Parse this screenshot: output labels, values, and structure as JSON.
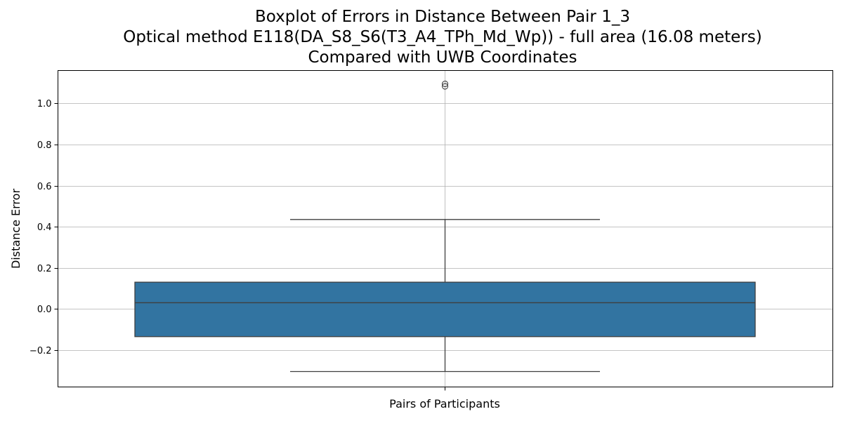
{
  "chart_data": {
    "type": "boxplot",
    "title_lines": [
      "Boxplot of Errors in Distance Between Pair 1_3",
      "Optical method E118(DA_S8_S6(T3_A4_TPh_Md_Wp)) - full area (16.08 meters)",
      "Compared with UWB Coordinates"
    ],
    "xlabel": "Pairs of Participants",
    "ylabel": "Distance Error",
    "ylim": [
      -0.38,
      1.16
    ],
    "yticks": [
      -0.2,
      0.0,
      0.2,
      0.4,
      0.6,
      0.8,
      1.0
    ],
    "ytick_labels": [
      "−0.2",
      "0.0",
      "0.2",
      "0.4",
      "0.6",
      "0.8",
      "1.0"
    ],
    "grid": true,
    "box": {
      "whisker_low": -0.305,
      "q1": -0.135,
      "median": 0.03,
      "q3": 0.13,
      "whisker_high": 0.435,
      "outliers": [
        1.083,
        1.095
      ]
    },
    "colors": {
      "box_fill": "#3274a1",
      "box_edge": "#3f3f3f",
      "grid": "#b0b0b0"
    }
  }
}
